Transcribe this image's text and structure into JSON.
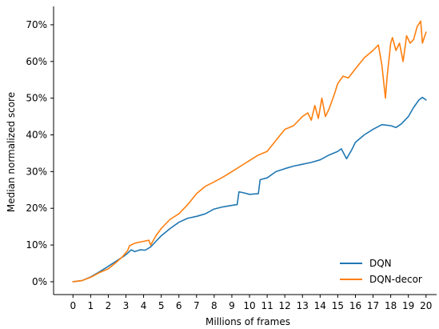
{
  "chart_data": {
    "type": "line",
    "title": "",
    "xlabel": "Millions of frames",
    "ylabel": "Median normalized score",
    "xlim": [
      -1.1,
      20.6
    ],
    "ylim": [
      -3.5,
      75
    ],
    "x_ticks": [
      0,
      1,
      2,
      3,
      4,
      5,
      6,
      7,
      8,
      9,
      10,
      11,
      12,
      13,
      14,
      15,
      16,
      17,
      18,
      19,
      20
    ],
    "x_tick_labels": [
      "0",
      "1",
      "2",
      "3",
      "4",
      "5",
      "6",
      "7",
      "8",
      "9",
      "10",
      "11",
      "12",
      "13",
      "14",
      "15",
      "16",
      "17",
      "18",
      "19",
      "20"
    ],
    "y_ticks": [
      0,
      10,
      20,
      30,
      40,
      50,
      60,
      70
    ],
    "y_tick_labels": [
      "0%",
      "10%",
      "20%",
      "30%",
      "40%",
      "50%",
      "60%",
      "70%"
    ],
    "grid": false,
    "legend_position": "lower-right",
    "series": [
      {
        "name": "DQN",
        "color": "#1f77b4",
        "points": [
          [
            0,
            0
          ],
          [
            0.5,
            0.3
          ],
          [
            1,
            1.3
          ],
          [
            1.5,
            2.7
          ],
          [
            2,
            4.2
          ],
          [
            2.5,
            5.8
          ],
          [
            2.9,
            7.0
          ],
          [
            3.1,
            7.8
          ],
          [
            3.3,
            8.7
          ],
          [
            3.5,
            8.2
          ],
          [
            3.8,
            8.7
          ],
          [
            4.1,
            8.6
          ],
          [
            4.4,
            9.5
          ],
          [
            4.7,
            11
          ],
          [
            5,
            12.5
          ],
          [
            5.5,
            14.5
          ],
          [
            6,
            16.2
          ],
          [
            6.5,
            17.3
          ],
          [
            7,
            17.8
          ],
          [
            7.5,
            18.5
          ],
          [
            8,
            19.8
          ],
          [
            8.5,
            20.4
          ],
          [
            9,
            20.8
          ],
          [
            9.3,
            21
          ],
          [
            9.4,
            24.5
          ],
          [
            9.7,
            24.2
          ],
          [
            10,
            23.8
          ],
          [
            10.5,
            24
          ],
          [
            10.6,
            27.8
          ],
          [
            11,
            28.3
          ],
          [
            11.5,
            30
          ],
          [
            12,
            30.8
          ],
          [
            12.5,
            31.5
          ],
          [
            13,
            32
          ],
          [
            13.5,
            32.5
          ],
          [
            14,
            33.2
          ],
          [
            14.5,
            34.5
          ],
          [
            15,
            35.5
          ],
          [
            15.2,
            36.2
          ],
          [
            15.5,
            33.5
          ],
          [
            15.8,
            36
          ],
          [
            16,
            38
          ],
          [
            16.5,
            40
          ],
          [
            17,
            41.5
          ],
          [
            17.5,
            42.8
          ],
          [
            18,
            42.5
          ],
          [
            18.3,
            42
          ],
          [
            18.6,
            43
          ],
          [
            19,
            45
          ],
          [
            19.3,
            47.5
          ],
          [
            19.6,
            49.5
          ],
          [
            19.8,
            50.2
          ],
          [
            20,
            49.5
          ]
        ]
      },
      {
        "name": "DQN-decor",
        "color": "#ff7f0e",
        "points": [
          [
            0,
            0
          ],
          [
            0.5,
            0.3
          ],
          [
            1,
            1.2
          ],
          [
            1.5,
            2.5
          ],
          [
            2,
            3.5
          ],
          [
            2.5,
            5.5
          ],
          [
            2.8,
            6.8
          ],
          [
            3.1,
            8.5
          ],
          [
            3.2,
            9.8
          ],
          [
            3.5,
            10.5
          ],
          [
            4,
            11
          ],
          [
            4.3,
            11.3
          ],
          [
            4.4,
            10
          ],
          [
            4.7,
            12.5
          ],
          [
            5,
            14.5
          ],
          [
            5.5,
            17
          ],
          [
            6,
            18.5
          ],
          [
            6.5,
            21
          ],
          [
            7,
            24
          ],
          [
            7.5,
            26
          ],
          [
            8,
            27.2
          ],
          [
            8.5,
            28.5
          ],
          [
            9,
            30
          ],
          [
            9.5,
            31.5
          ],
          [
            10,
            33
          ],
          [
            10.5,
            34.5
          ],
          [
            11,
            35.5
          ],
          [
            11.5,
            38.5
          ],
          [
            12,
            41.5
          ],
          [
            12.5,
            42.5
          ],
          [
            13,
            45
          ],
          [
            13.3,
            46
          ],
          [
            13.5,
            44
          ],
          [
            13.7,
            48
          ],
          [
            13.9,
            44.5
          ],
          [
            14.1,
            50
          ],
          [
            14.3,
            45
          ],
          [
            14.5,
            47
          ],
          [
            14.8,
            51
          ],
          [
            15,
            54
          ],
          [
            15.3,
            56
          ],
          [
            15.6,
            55.5
          ],
          [
            16,
            58
          ],
          [
            16.5,
            61
          ],
          [
            17,
            63
          ],
          [
            17.3,
            64.5
          ],
          [
            17.5,
            59
          ],
          [
            17.7,
            50
          ],
          [
            17.8,
            56
          ],
          [
            18,
            65
          ],
          [
            18.1,
            66.5
          ],
          [
            18.3,
            63
          ],
          [
            18.5,
            65
          ],
          [
            18.7,
            60
          ],
          [
            18.9,
            67
          ],
          [
            19.1,
            65
          ],
          [
            19.3,
            66
          ],
          [
            19.5,
            69.5
          ],
          [
            19.7,
            71
          ],
          [
            19.8,
            65
          ],
          [
            20,
            68
          ]
        ]
      }
    ]
  }
}
